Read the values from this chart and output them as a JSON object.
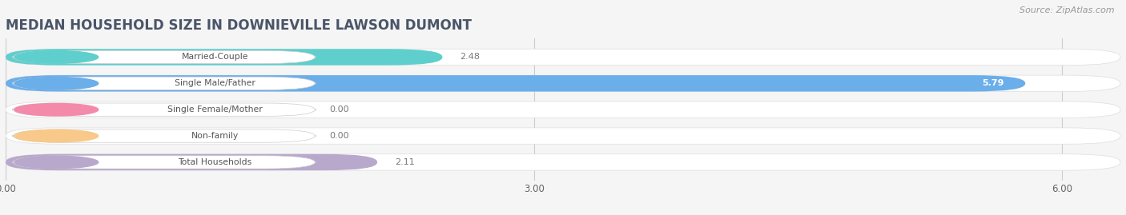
{
  "title": "MEDIAN HOUSEHOLD SIZE IN DOWNIEVILLE LAWSON DUMONT",
  "source": "Source: ZipAtlas.com",
  "categories": [
    "Married-Couple",
    "Single Male/Father",
    "Single Female/Mother",
    "Non-family",
    "Total Households"
  ],
  "values": [
    2.48,
    5.79,
    0.0,
    0.0,
    2.11
  ],
  "bar_colors": [
    "#5ecfcc",
    "#6aaeea",
    "#f48aaa",
    "#f8c98a",
    "#b8a8cc"
  ],
  "label_circle_colors": [
    "#5ecfcc",
    "#6aaeea",
    "#f48aaa",
    "#f8c98a",
    "#b8a8cc"
  ],
  "xlim": [
    0,
    6.33
  ],
  "xticks": [
    0.0,
    3.0,
    6.0
  ],
  "xtick_labels": [
    "0.00",
    "3.00",
    "6.00"
  ],
  "title_fontsize": 12,
  "source_fontsize": 8,
  "bar_height": 0.62,
  "background_color": "#f5f5f5",
  "label_box_color": "#ffffff",
  "value_label_inside_color": "#ffffff",
  "value_label_outside_color": "#777777"
}
